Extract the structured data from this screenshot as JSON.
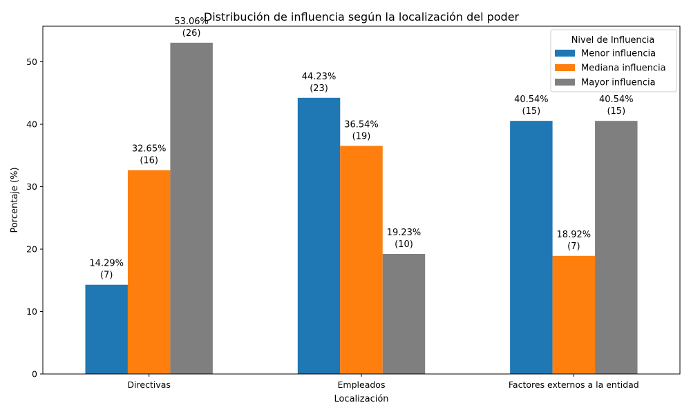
{
  "chart_data": {
    "type": "bar",
    "title": "Distribución de influencia según la localización del poder",
    "xlabel": "Localización",
    "ylabel": "Porcentaje (%)",
    "ylim": [
      0,
      55.7
    ],
    "yticks": [
      0,
      10,
      20,
      30,
      40,
      50
    ],
    "categories": [
      "Directivas",
      "Empleados",
      "Factores externos a la entidad"
    ],
    "legend_title": "Nivel de Influencia",
    "legend_position": "top-right",
    "grid": false,
    "series": [
      {
        "name": "Menor influencia",
        "color": "#1f77b4",
        "values": [
          14.29,
          44.23,
          40.54
        ],
        "labels": [
          "14.29%",
          "44.23%",
          "40.54%"
        ],
        "counts": [
          "(7)",
          "(23)",
          "(15)"
        ]
      },
      {
        "name": "Mediana influencia",
        "color": "#ff7f0e",
        "values": [
          32.65,
          36.54,
          18.92
        ],
        "labels": [
          "32.65%",
          "36.54%",
          "18.92%"
        ],
        "counts": [
          "(16)",
          "(19)",
          "(7)"
        ]
      },
      {
        "name": "Mayor influencia",
        "color": "#7f7f7f",
        "values": [
          53.06,
          19.23,
          40.54
        ],
        "labels": [
          "53.06%",
          "19.23%",
          "40.54%"
        ],
        "counts": [
          "(26)",
          "(10)",
          "(15)"
        ]
      }
    ]
  }
}
